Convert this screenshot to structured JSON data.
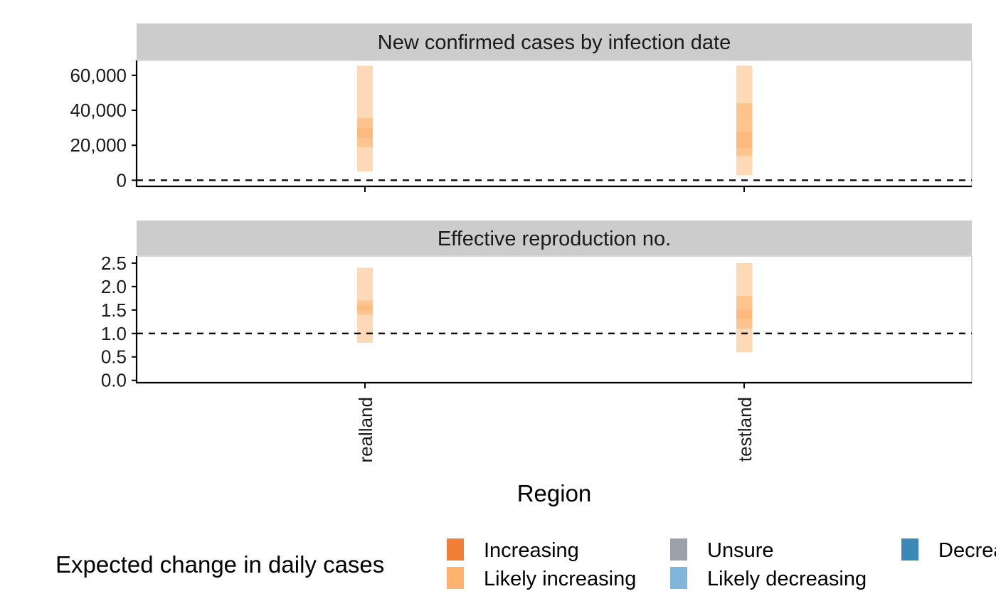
{
  "chart_data": {
    "type": "range-bar-facets",
    "xlabel": "Region",
    "categories": [
      "realland",
      "testland"
    ],
    "reference_line_style": "dashed",
    "facets": [
      {
        "title": "New confirmed cases by infection date",
        "ylim": [
          -3500,
          68500
        ],
        "yticks": [
          0,
          20000,
          40000,
          60000
        ],
        "ytick_labels": [
          "0",
          "20,000",
          "40,000",
          "60,000"
        ],
        "reference_line": 0,
        "bars": [
          {
            "region": "realland",
            "change": "Likely increasing",
            "lower_90": 5000,
            "upper_90": 65500,
            "lower_50": 19000,
            "upper_50": 35500,
            "lower_20": 24500,
            "upper_20": 30000
          },
          {
            "region": "testland",
            "change": "Likely increasing",
            "lower_90": 2800,
            "upper_90": 65500,
            "lower_50": 13800,
            "upper_50": 44000,
            "lower_20": 18500,
            "upper_20": 27500
          }
        ]
      },
      {
        "title": "Effective reproduction no.",
        "ylim": [
          -0.05,
          2.65
        ],
        "yticks": [
          0,
          0.5,
          1,
          1.5,
          2,
          2.5
        ],
        "ytick_labels": [
          "0.0",
          "0.5",
          "1.0",
          "1.5",
          "2.0",
          "2.5"
        ],
        "reference_line": 1,
        "bars": [
          {
            "region": "realland",
            "change": "Likely increasing",
            "lower_90": 0.8,
            "upper_90": 2.4,
            "lower_50": 1.4,
            "upper_50": 1.7,
            "lower_20": 1.5,
            "upper_20": 1.6
          },
          {
            "region": "testland",
            "change": "Likely increasing",
            "lower_90": 0.6,
            "upper_90": 2.5,
            "lower_50": 1.1,
            "upper_50": 1.8,
            "lower_20": 1.3,
            "upper_20": 1.5
          }
        ]
      }
    ],
    "legend": {
      "title": "Expected change in daily cases",
      "position": "bottom",
      "items": [
        {
          "label": "Increasing",
          "color": "#f07f37"
        },
        {
          "label": "Likely increasing",
          "color": "#fdb36e"
        },
        {
          "label": "Unsure",
          "color": "#9ba1a8"
        },
        {
          "label": "Likely decreasing",
          "color": "#7fb6d9"
        },
        {
          "label": "Decreasing",
          "color": "#3a89b9"
        }
      ]
    },
    "colors": {
      "strip_background": "#cccccc",
      "axis": "#000000",
      "panel_border": "#d9d9d9"
    }
  }
}
